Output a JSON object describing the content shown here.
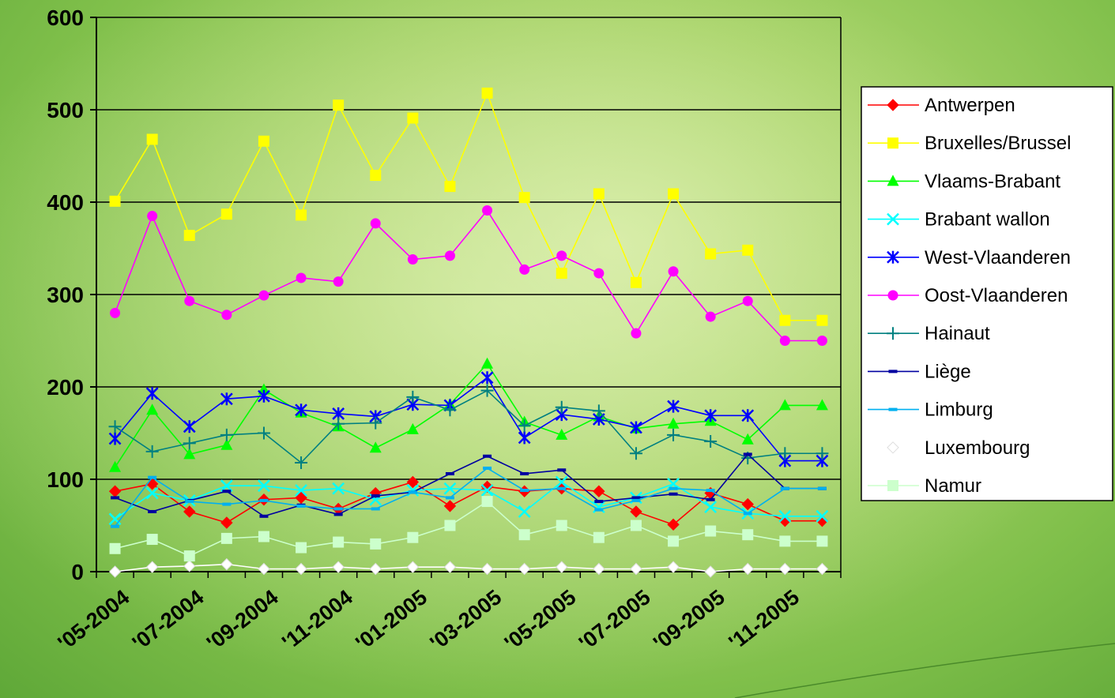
{
  "chart_data": {
    "type": "line",
    "title": "",
    "xlabel": "",
    "ylabel": "",
    "ylim": [
      0,
      600
    ],
    "yticks": [
      0,
      100,
      200,
      300,
      400,
      500,
      600
    ],
    "grid": "horizontal",
    "legend_position": "right",
    "x": [
      "05-2004",
      "06-2004",
      "07-2004",
      "08-2004",
      "09-2004",
      "10-2004",
      "11-2004",
      "12-2004",
      "01-2005",
      "02-2005",
      "03-2005",
      "04-2005",
      "05-2005",
      "06-2005",
      "07-2005",
      "08-2005",
      "09-2005",
      "10-2005",
      "11-2005",
      "12-2005"
    ],
    "x_tick_labels": [
      "'05-2004",
      "'07-2004",
      "'09-2004",
      "'11-2004",
      "'01-2005",
      "'03-2005",
      "'05-2005",
      "'07-2005",
      "'09-2005",
      "'11-2005"
    ],
    "series": [
      {
        "name": "Antwerpen",
        "color": "#ff0000",
        "marker": "diamond",
        "values": [
          87,
          95,
          65,
          53,
          78,
          80,
          68,
          85,
          97,
          71,
          92,
          87,
          90,
          87,
          65,
          51,
          85,
          73,
          55,
          55
        ]
      },
      {
        "name": "Bruxelles/Brussel",
        "color": "#ffff00",
        "marker": "square",
        "values": [
          401,
          468,
          364,
          387,
          466,
          386,
          505,
          429,
          491,
          417,
          518,
          405,
          323,
          409,
          313,
          409,
          344,
          348,
          272,
          272
        ]
      },
      {
        "name": "Vlaams-Brabant",
        "color": "#00ff00",
        "marker": "triangle",
        "values": [
          113,
          175,
          127,
          137,
          197,
          172,
          157,
          134,
          154,
          181,
          225,
          162,
          148,
          168,
          155,
          160,
          163,
          143,
          180,
          180
        ]
      },
      {
        "name": "Brabant wallon",
        "color": "#00ffff",
        "marker": "x",
        "values": [
          57,
          85,
          77,
          93,
          93,
          88,
          90,
          78,
          88,
          90,
          88,
          65,
          97,
          70,
          80,
          95,
          70,
          63,
          60,
          60
        ]
      },
      {
        "name": "West-Vlaanderen",
        "color": "#0000ff",
        "marker": "star",
        "values": [
          144,
          193,
          157,
          187,
          190,
          175,
          171,
          168,
          181,
          180,
          210,
          145,
          170,
          165,
          156,
          179,
          169,
          169,
          120,
          120
        ]
      },
      {
        "name": "Oost-Vlaanderen",
        "color": "#ff00ff",
        "marker": "circle",
        "values": [
          280,
          385,
          293,
          278,
          299,
          318,
          314,
          377,
          338,
          342,
          391,
          327,
          342,
          323,
          258,
          325,
          276,
          293,
          250,
          250
        ]
      },
      {
        "name": "Hainaut",
        "color": "#008080",
        "marker": "plus",
        "values": [
          157,
          130,
          139,
          148,
          150,
          118,
          160,
          161,
          189,
          175,
          196,
          158,
          178,
          174,
          128,
          148,
          141,
          123,
          128,
          128
        ]
      },
      {
        "name": "Liège",
        "color": "#0000a0",
        "marker": "dash",
        "values": [
          80,
          65,
          77,
          87,
          60,
          72,
          62,
          82,
          86,
          106,
          125,
          106,
          110,
          76,
          80,
          84,
          78,
          127,
          90,
          90
        ]
      },
      {
        "name": "Limburg",
        "color": "#00b0f0",
        "marker": "dash",
        "values": [
          49,
          102,
          76,
          73,
          77,
          71,
          68,
          68,
          86,
          80,
          112,
          88,
          90,
          67,
          77,
          90,
          88,
          63,
          90,
          90
        ]
      },
      {
        "name": "Luxembourg",
        "color": "#ffffff",
        "marker": "diamond",
        "values": [
          0,
          5,
          6,
          8,
          3,
          3,
          5,
          3,
          5,
          5,
          3,
          3,
          5,
          3,
          3,
          5,
          0,
          3,
          3,
          3
        ]
      },
      {
        "name": "Namur",
        "color": "#ccffcc",
        "marker": "square",
        "values": [
          25,
          35,
          17,
          36,
          38,
          26,
          32,
          30,
          37,
          50,
          76,
          40,
          50,
          37,
          50,
          33,
          44,
          40,
          33,
          33
        ]
      }
    ]
  }
}
